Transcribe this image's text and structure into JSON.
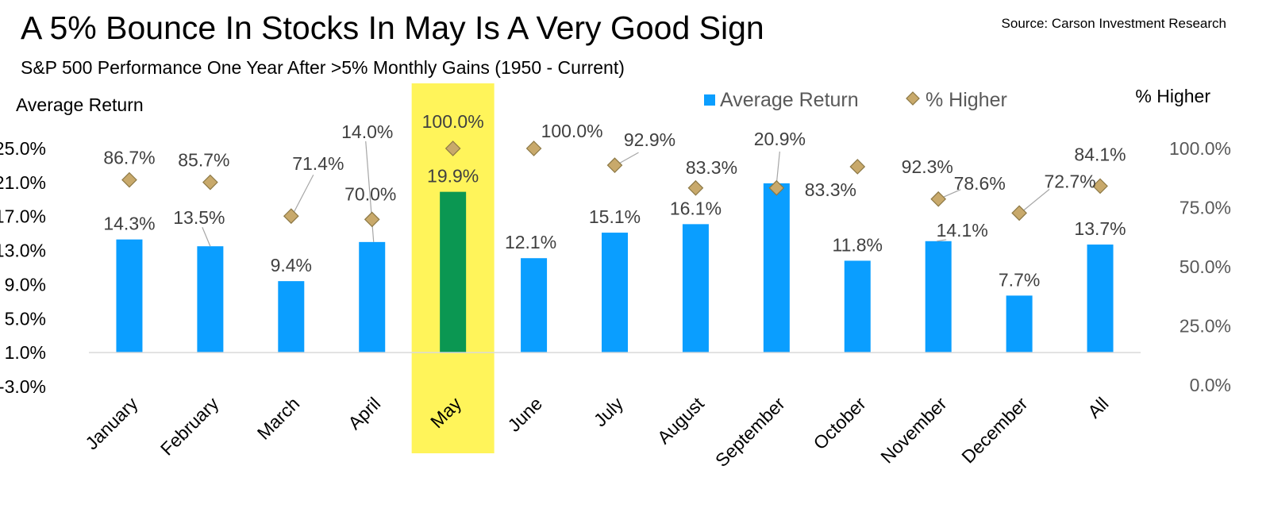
{
  "header": {
    "title": "A 5% Bounce In Stocks In May Is A Very Good Sign",
    "subtitle": "S&P 500 Performance One Year After >5% Monthly Gains (1950 - Current)",
    "source": "Source: Carson Investment Research"
  },
  "chart_data": {
    "type": "bar",
    "title": "A 5% Bounce In Stocks In May Is A Very Good Sign",
    "subtitle": "S&P 500 Performance One Year After >5% Monthly Gains (1950 - Current)",
    "categories": [
      "January",
      "February",
      "March",
      "April",
      "May",
      "June",
      "July",
      "August",
      "September",
      "October",
      "November",
      "December",
      "All"
    ],
    "series": [
      {
        "name": "Average Return",
        "type": "bar",
        "axis": "left",
        "values": [
          14.3,
          13.5,
          9.4,
          14.0,
          19.9,
          12.1,
          15.1,
          16.1,
          20.9,
          11.8,
          14.1,
          7.7,
          13.7
        ],
        "labels": [
          "14.3%",
          "13.5%",
          "9.4%",
          "14.0%",
          "19.9%",
          "12.1%",
          "15.1%",
          "16.1%",
          "20.9%",
          "11.8%",
          "14.1%",
          "7.7%",
          "13.7%"
        ],
        "color": "#0A9EFF",
        "highlight_index": 4,
        "highlight_color": "#0B9752"
      },
      {
        "name": "% Higher",
        "type": "scatter",
        "marker": "diamond",
        "axis": "right",
        "values": [
          86.7,
          85.7,
          71.4,
          70.0,
          100.0,
          100.0,
          92.9,
          83.3,
          83.3,
          92.3,
          78.6,
          72.7,
          84.1
        ],
        "labels": [
          "86.7%",
          "85.7%",
          "71.4%",
          "70.0%",
          "100.0%",
          "100.0%",
          "92.9%",
          "83.3%",
          "83.3%",
          "92.3%",
          "78.6%",
          "72.7%",
          "84.1%"
        ],
        "color": "#C8A96B"
      }
    ],
    "ylabel_left": "Average Return",
    "ylabel_right": "% Higher",
    "ylim_left": [
      -3.0,
      25.0
    ],
    "yticks_left": [
      "25.0%",
      "21.0%",
      "17.0%",
      "13.0%",
      "9.0%",
      "5.0%",
      "1.0%",
      "-3.0%"
    ],
    "ylim_right": [
      0.0,
      100.0
    ],
    "yticks_right": [
      "100.0%",
      "75.0%",
      "50.0%",
      "25.0%",
      "0.0%"
    ],
    "legend": [
      "Average Return",
      "% Higher"
    ],
    "legend_position": "top-center",
    "grid": false,
    "highlight_category": "May",
    "highlight_band_color": "#FFF45A"
  }
}
